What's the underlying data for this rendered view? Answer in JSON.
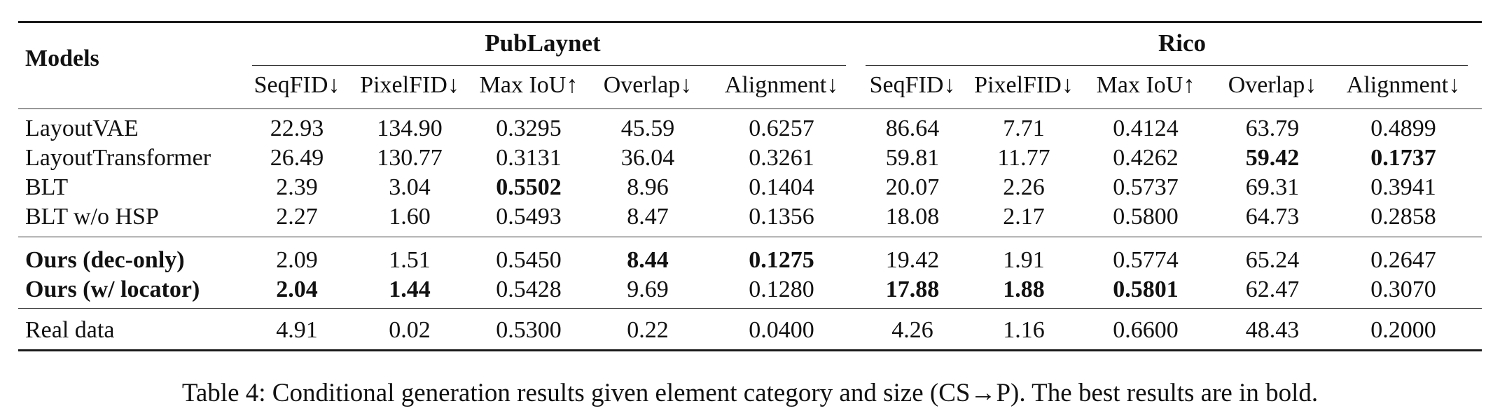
{
  "table": {
    "models_header": "Models",
    "group_publaynet": "PubLaynet",
    "group_rico": "Rico",
    "metric_headers": [
      "SeqFID↓",
      "PixelFID↓",
      "Max IoU↑",
      "Overlap↓",
      "Alignment↓",
      "SeqFID↓",
      "PixelFID↓",
      "Max IoU↑",
      "Overlap↓",
      "Alignment↓"
    ],
    "rows": [
      {
        "model": "LayoutVAE",
        "model_bold": false,
        "values": [
          "22.93",
          "134.90",
          "0.3295",
          "45.59",
          "0.6257",
          "86.64",
          "7.71",
          "0.4124",
          "63.79",
          "0.4899"
        ],
        "bold": [
          false,
          false,
          false,
          false,
          false,
          false,
          false,
          false,
          false,
          false
        ]
      },
      {
        "model": "LayoutTransformer",
        "model_bold": false,
        "values": [
          "26.49",
          "130.77",
          "0.3131",
          "36.04",
          "0.3261",
          "59.81",
          "11.77",
          "0.4262",
          "59.42",
          "0.1737"
        ],
        "bold": [
          false,
          false,
          false,
          false,
          false,
          false,
          false,
          false,
          true,
          true
        ]
      },
      {
        "model": "BLT",
        "model_bold": false,
        "values": [
          "2.39",
          "3.04",
          "0.5502",
          "8.96",
          "0.1404",
          "20.07",
          "2.26",
          "0.5737",
          "69.31",
          "0.3941"
        ],
        "bold": [
          false,
          false,
          true,
          false,
          false,
          false,
          false,
          false,
          false,
          false
        ]
      },
      {
        "model": "BLT w/o HSP",
        "model_bold": false,
        "values": [
          "2.27",
          "1.60",
          "0.5493",
          "8.47",
          "0.1356",
          "18.08",
          "2.17",
          "0.5800",
          "64.73",
          "0.2858"
        ],
        "bold": [
          false,
          false,
          false,
          false,
          false,
          false,
          false,
          false,
          false,
          false
        ]
      },
      {
        "model": "Ours (dec-only)",
        "model_bold": true,
        "values": [
          "2.09",
          "1.51",
          "0.5450",
          "8.44",
          "0.1275",
          "19.42",
          "1.91",
          "0.5774",
          "65.24",
          "0.2647"
        ],
        "bold": [
          false,
          false,
          false,
          true,
          true,
          false,
          false,
          false,
          false,
          false
        ]
      },
      {
        "model": "Ours (w/ locator)",
        "model_bold": true,
        "values": [
          "2.04",
          "1.44",
          "0.5428",
          "9.69",
          "0.1280",
          "17.88",
          "1.88",
          "0.5801",
          "62.47",
          "0.3070"
        ],
        "bold": [
          true,
          true,
          false,
          false,
          false,
          true,
          true,
          true,
          false,
          false
        ]
      },
      {
        "model": "Real data",
        "model_bold": false,
        "values": [
          "4.91",
          "0.02",
          "0.5300",
          "0.22",
          "0.0400",
          "4.26",
          "1.16",
          "0.6600",
          "48.43",
          "0.2000"
        ],
        "bold": [
          false,
          false,
          false,
          false,
          false,
          false,
          false,
          false,
          false,
          false
        ]
      }
    ]
  },
  "caption": "Table 4: Conditional generation results given element category and size (CS→P). The best results are in bold."
}
